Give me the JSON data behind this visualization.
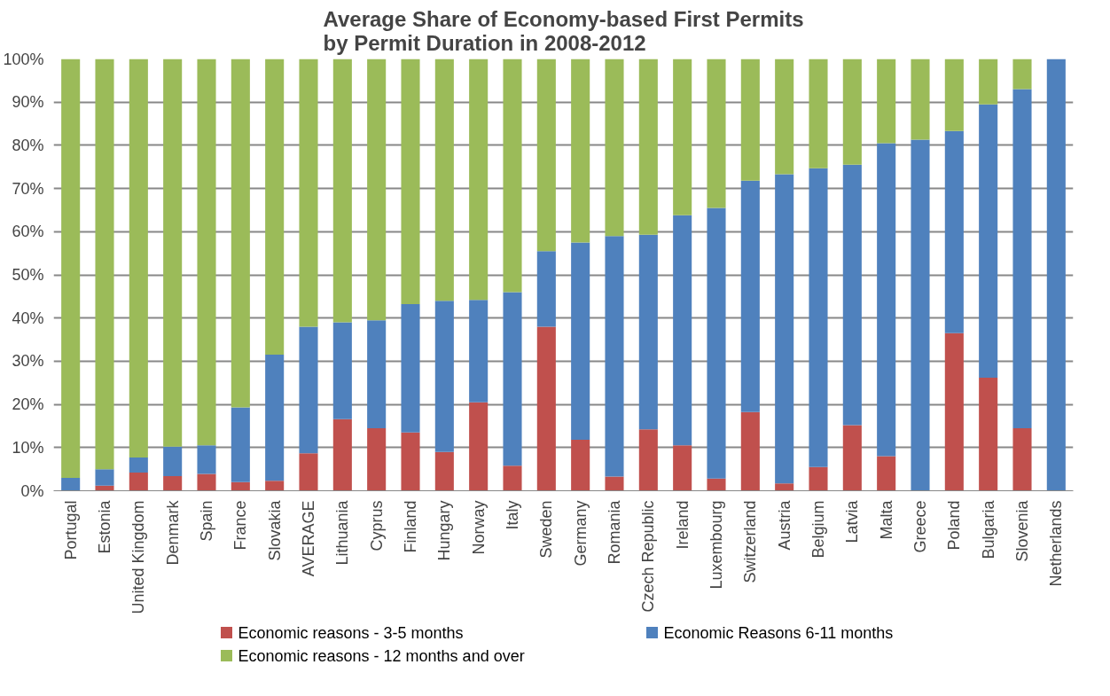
{
  "chart_data": {
    "type": "bar",
    "title": "Average Share of Economy-based First Permits\nby Permit Duration in 2008-2012",
    "stacked": true,
    "grid": "y",
    "legend": "bottom",
    "categories": [
      "Portugal",
      "Estonia",
      "United Kingdom",
      "Denmark",
      "Spain",
      "France",
      "Slovakia",
      "AVERAGE",
      "Lithuania",
      "Cyprus",
      "Finland",
      "Hungary",
      "Norway",
      "Italy",
      "Sweden",
      "Germany",
      "Romania",
      "Czech Republic",
      "Ireland",
      "Luxembourg",
      "Switzerland",
      "Austria",
      "Belgium",
      "Latvia",
      "Malta",
      "Greece",
      "Poland",
      "Bulgaria",
      "Slovenia",
      "Netherlands"
    ],
    "series": [
      {
        "name": "Economic reasons - 3-5 months",
        "color": "#c0504d",
        "values": [
          0,
          1.2,
          4.2,
          3.4,
          3.9,
          2,
          2.3,
          8.7,
          16.6,
          14.5,
          13.5,
          9,
          20.5,
          5.8,
          38,
          11.8,
          3.3,
          14.2,
          10.5,
          2.8,
          18.2,
          1.7,
          5.5,
          15.2,
          8,
          0,
          36.5,
          26.2,
          14.5,
          0
        ]
      },
      {
        "name": "Economic Reasons 6-11 months",
        "color": "#4f81bd",
        "values": [
          3,
          3.8,
          3.5,
          6.8,
          6.6,
          17.3,
          29.2,
          29.3,
          22.4,
          25,
          29.7,
          35,
          23.7,
          40.2,
          17.5,
          45.7,
          55.7,
          45.1,
          53.3,
          62.7,
          53.6,
          71.6,
          69.2,
          60.3,
          72.5,
          81.3,
          46.8,
          63.3,
          78.5,
          100
        ]
      },
      {
        "name": "Economic reasons - 12 months and over",
        "color": "#9bbb59",
        "values": [
          97,
          95,
          92.3,
          89.8,
          89.5,
          80.7,
          68.5,
          62,
          61,
          60.5,
          56.8,
          56,
          55.8,
          54,
          44.5,
          42.5,
          41,
          40.7,
          36.2,
          34.5,
          28.2,
          26.7,
          25.3,
          24.5,
          19.5,
          18.7,
          16.7,
          10.5,
          7,
          0
        ]
      }
    ],
    "ylim": [
      0,
      100
    ],
    "yticks": [
      {
        "value": 0,
        "label": "0%"
      },
      {
        "value": 10,
        "label": "10%"
      },
      {
        "value": 20,
        "label": "20%"
      },
      {
        "value": 30,
        "label": "30%"
      },
      {
        "value": 40,
        "label": "40%"
      },
      {
        "value": 50,
        "label": "50%"
      },
      {
        "value": 60,
        "label": "60%"
      },
      {
        "value": 70,
        "label": "70%"
      },
      {
        "value": 80,
        "label": "80%"
      },
      {
        "value": 90,
        "label": "90%"
      },
      {
        "value": 100,
        "label": "100%"
      }
    ]
  }
}
